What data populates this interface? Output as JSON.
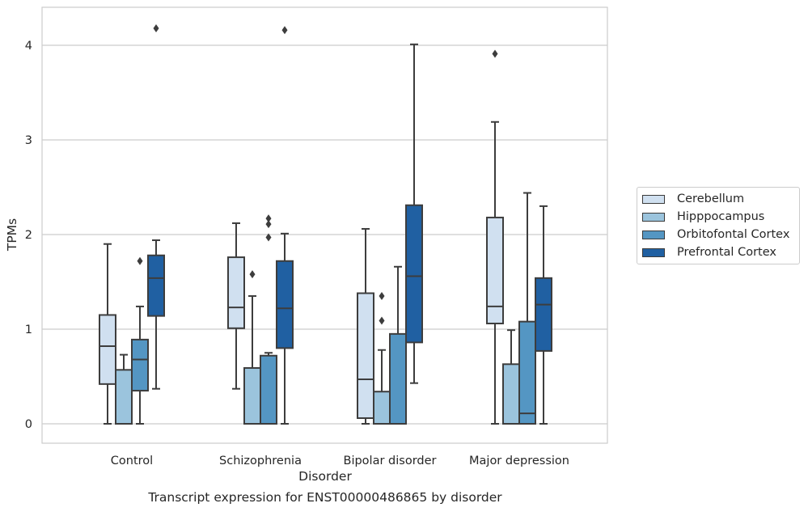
{
  "chart_data": {
    "type": "box",
    "caption": "Transcript expression for ENST00000486865 by disorder",
    "xlabel": "Disorder",
    "ylabel": "TPMs",
    "ylim": [
      -0.2,
      4.4
    ],
    "yticks": [
      0,
      1,
      2,
      3,
      4
    ],
    "grid": "horizontal",
    "legend_position": "right",
    "categories": [
      "Control",
      "Schizophrenia",
      "Bipolar disorder",
      "Major depression"
    ],
    "series": [
      {
        "name": "Cerebellum",
        "color": "#d0e0f0",
        "boxes": [
          {
            "whislo": 0.0,
            "q1": 0.42,
            "med": 0.82,
            "q3": 1.15,
            "whishi": 1.9,
            "fliers": []
          },
          {
            "whislo": 0.37,
            "q1": 1.01,
            "med": 1.23,
            "q3": 1.76,
            "whishi": 2.12,
            "fliers": []
          },
          {
            "whislo": 0.0,
            "q1": 0.06,
            "med": 0.47,
            "q3": 1.38,
            "whishi": 2.06,
            "fliers": []
          },
          {
            "whislo": 0.0,
            "q1": 1.06,
            "med": 1.24,
            "q3": 2.18,
            "whishi": 3.19,
            "fliers": [
              3.91
            ]
          }
        ]
      },
      {
        "name": "Hipppocampus",
        "color": "#9bc4dd",
        "boxes": [
          {
            "whislo": 0.0,
            "q1": 0.0,
            "med": 0.0,
            "q3": 0.57,
            "whishi": 0.73,
            "fliers": []
          },
          {
            "whislo": 0.0,
            "q1": 0.0,
            "med": 0.0,
            "q3": 0.59,
            "whishi": 1.35,
            "fliers": [
              1.58
            ]
          },
          {
            "whislo": 0.0,
            "q1": 0.0,
            "med": 0.0,
            "q3": 0.34,
            "whishi": 0.78,
            "fliers": [
              1.09,
              1.35
            ]
          },
          {
            "whislo": 0.0,
            "q1": 0.0,
            "med": 0.0,
            "q3": 0.63,
            "whishi": 0.99,
            "fliers": []
          }
        ]
      },
      {
        "name": "Orbitofontal Cortex",
        "color": "#5496c3",
        "boxes": [
          {
            "whislo": 0.0,
            "q1": 0.35,
            "med": 0.68,
            "q3": 0.89,
            "whishi": 1.24,
            "fliers": [
              1.72
            ]
          },
          {
            "whislo": 0.0,
            "q1": 0.0,
            "med": 0.0,
            "q3": 0.72,
            "whishi": 0.75,
            "fliers": [
              1.97,
              2.11,
              2.17
            ]
          },
          {
            "whislo": 0.0,
            "q1": 0.0,
            "med": 0.0,
            "q3": 0.95,
            "whishi": 1.66,
            "fliers": []
          },
          {
            "whislo": 0.0,
            "q1": 0.0,
            "med": 0.11,
            "q3": 1.08,
            "whishi": 2.44,
            "fliers": []
          }
        ]
      },
      {
        "name": "Prefrontal Cortex",
        "color": "#2060a2",
        "boxes": [
          {
            "whislo": 0.37,
            "q1": 1.14,
            "med": 1.54,
            "q3": 1.78,
            "whishi": 1.94,
            "fliers": [
              4.18
            ]
          },
          {
            "whislo": 0.0,
            "q1": 0.8,
            "med": 1.22,
            "q3": 1.72,
            "whishi": 2.01,
            "fliers": [
              4.16
            ]
          },
          {
            "whislo": 0.43,
            "q1": 0.86,
            "med": 1.56,
            "q3": 2.31,
            "whishi": 4.01,
            "fliers": []
          },
          {
            "whislo": 0.0,
            "q1": 0.77,
            "med": 1.26,
            "q3": 1.54,
            "whishi": 2.3,
            "fliers": []
          }
        ]
      }
    ]
  }
}
